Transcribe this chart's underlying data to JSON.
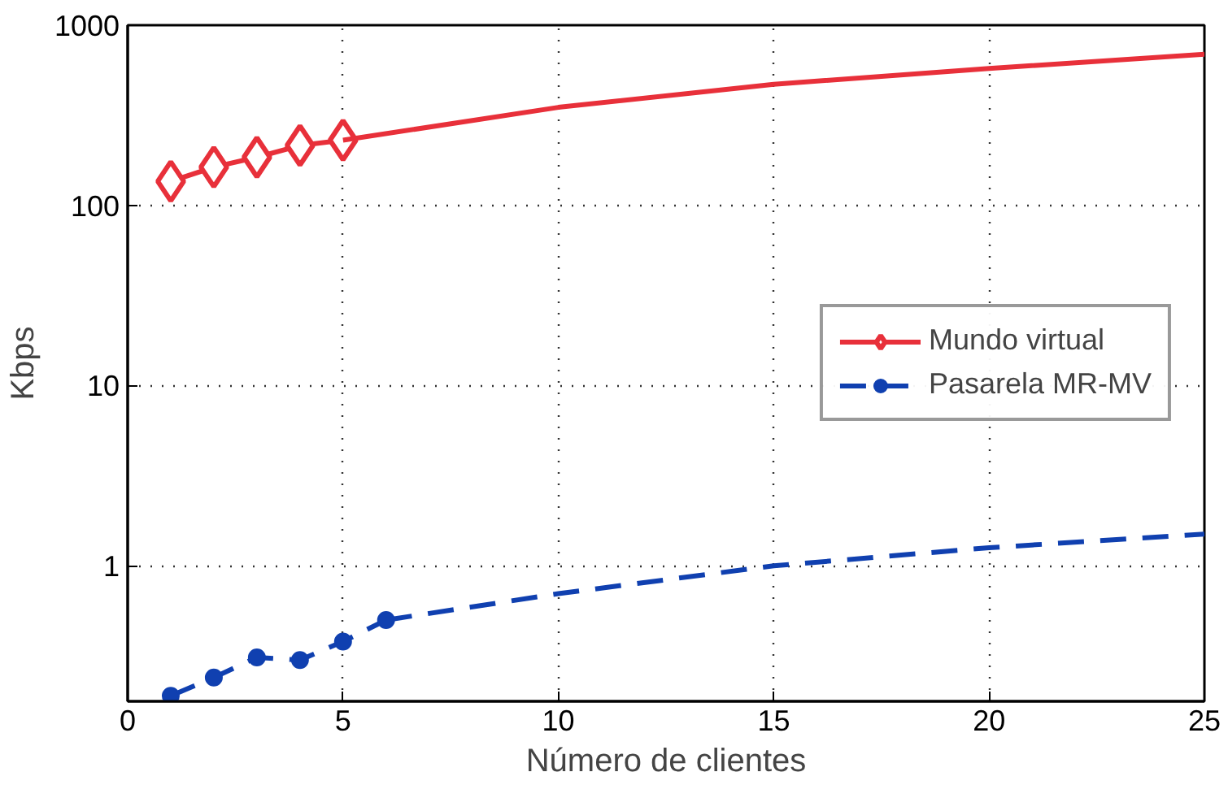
{
  "chart_data": {
    "type": "line",
    "xlabel": "Número de clientes",
    "ylabel": "Kbps",
    "log": "y",
    "grid": true,
    "legend": "right",
    "xlim": [
      0,
      25
    ],
    "xticks": [
      0,
      5,
      10,
      15,
      20,
      25
    ],
    "ylim": [
      0.177,
      1000
    ],
    "yticks": [
      1,
      10,
      100,
      1000
    ],
    "series": [
      {
        "name": "Mundo virtual",
        "color": "#e8303a",
        "marker": "diamond",
        "line_style": "solid",
        "x": [
          1,
          2,
          3,
          4,
          5
        ],
        "values": [
          136,
          163,
          185,
          215,
          230
        ]
      },
      {
        "color": "#e8303a",
        "marker": "none",
        "line_style": "solid",
        "x": [
          5,
          10,
          15,
          20,
          25
        ],
        "values": [
          230,
          350,
          470,
          575,
          690
        ]
      },
      {
        "name": "Pasarela MR-MV",
        "color": "#1040b0",
        "marker": "circle",
        "line_style": "dashed",
        "x": [
          1,
          2,
          3,
          4,
          5,
          6
        ],
        "values": [
          0.19,
          0.24,
          0.31,
          0.3,
          0.38,
          0.5
        ]
      },
      {
        "color": "#1040b0",
        "marker": "none",
        "line_style": "dashed",
        "x": [
          6,
          10,
          15,
          20,
          25
        ],
        "values": [
          0.5,
          0.7,
          1.0,
          1.26,
          1.5
        ]
      }
    ]
  }
}
